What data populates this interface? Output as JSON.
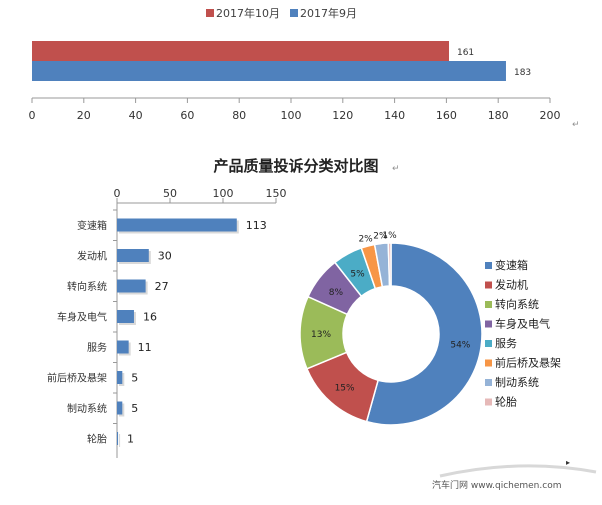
{
  "chart_data": [
    {
      "type": "bar",
      "orientation": "horizontal",
      "categories": [
        ""
      ],
      "series": [
        {
          "name": "2017年10月",
          "values": [
            161
          ],
          "color": "#c0504d"
        },
        {
          "name": "2017年9月",
          "values": [
            183
          ],
          "color": "#4f81bd"
        }
      ],
      "xlim": [
        0,
        200
      ],
      "x_ticks": [
        "0",
        "20",
        "40",
        "60",
        "80",
        "100",
        "120",
        "140",
        "160",
        "180",
        "200"
      ],
      "legend_position": "top",
      "grid": false
    },
    {
      "type": "bar",
      "orientation": "horizontal",
      "title": "产品质量投诉分类对比图",
      "categories": [
        "变速箱",
        "发动机",
        "转向系统",
        "车身及电气",
        "服务",
        "前后桥及悬架",
        "制动系统",
        "轮胎"
      ],
      "values": [
        113,
        30,
        27,
        16,
        11,
        5,
        5,
        1
      ],
      "value_labels": [
        "113",
        "30",
        "27",
        "16",
        "11",
        "5",
        "5",
        "1"
      ],
      "xlim": [
        0,
        150
      ],
      "x_ticks": [
        "0",
        "50",
        "100",
        "150"
      ],
      "x_axis_position": "top",
      "color": "#4f81bd",
      "grid": false
    },
    {
      "type": "pie",
      "style": "doughnut",
      "categories": [
        "变速箱",
        "发动机",
        "转向系统",
        "车身及电气",
        "服务",
        "前后桥及悬架",
        "制动系统",
        "轮胎"
      ],
      "values": [
        113,
        30,
        27,
        16,
        11,
        5,
        5,
        1
      ],
      "percent_labels": [
        "54%",
        "15%",
        "13%",
        "8%",
        "5%",
        "2%",
        "2%",
        "1%"
      ],
      "colors": [
        "#4f81bd",
        "#c0504d",
        "#9bbb59",
        "#8064a2",
        "#4bacc6",
        "#f79646",
        "#95b3d7",
        "#e6b9b8"
      ],
      "legend_position": "right"
    }
  ],
  "watermark": {
    "text": "汽车门网 www.qichemen.com"
  },
  "return_marks": {
    "top_axis": "↵",
    "title": "↵"
  }
}
